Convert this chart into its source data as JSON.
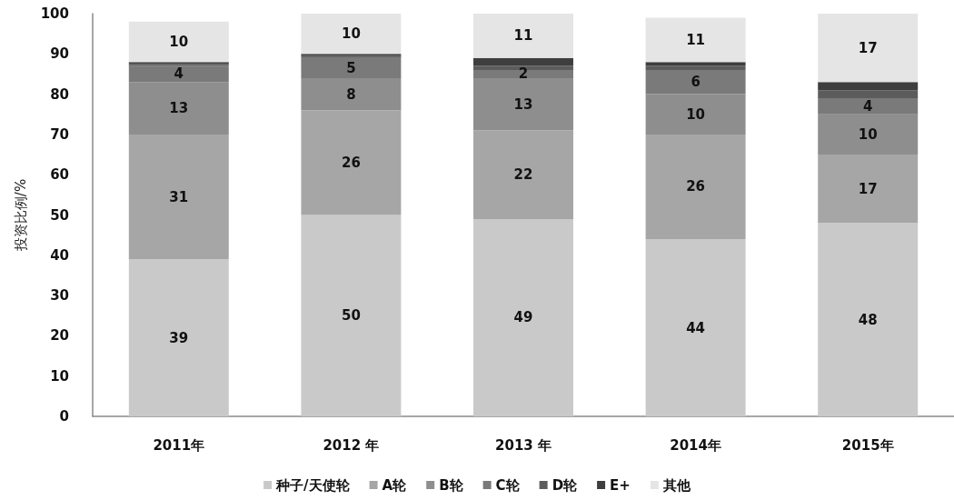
{
  "chart_data": {
    "type": "bar",
    "stacked": true,
    "ylabel": "投资比例/%",
    "categories": [
      "2011年",
      "2012 年",
      "2013 年",
      "2014年",
      "2015年"
    ],
    "series": [
      {
        "name": "种子/天使轮",
        "color": "#c9c9c9",
        "values": [
          39,
          50,
          49,
          44,
          48
        ],
        "value_labels": [
          "39",
          "50",
          "49",
          "44",
          "48"
        ]
      },
      {
        "name": "A轮",
        "color": "#a6a6a6",
        "values": [
          31,
          26,
          22,
          26,
          17
        ],
        "value_labels": [
          "31",
          "26",
          "22",
          "26",
          "17"
        ]
      },
      {
        "name": "B轮",
        "color": "#8e8e8e",
        "values": [
          13,
          8,
          13,
          10,
          10
        ],
        "value_labels": [
          "13",
          "8",
          "13",
          "10",
          "10"
        ]
      },
      {
        "name": "C轮",
        "color": "#7a7a7a",
        "values": [
          4,
          5,
          2,
          6,
          4
        ],
        "value_labels": [
          "4",
          "5",
          "2",
          "6",
          "4"
        ]
      },
      {
        "name": "D轮",
        "color": "#5c5c5c",
        "values": [
          0.5,
          0.5,
          1,
          1,
          2
        ]
      },
      {
        "name": "E+",
        "color": "#3e3e3e",
        "values": [
          0.5,
          0.5,
          2,
          1,
          2
        ]
      },
      {
        "name": "其他",
        "color": "#e5e5e5",
        "values": [
          10,
          10,
          11,
          11,
          17
        ],
        "value_labels": [
          "10",
          "10",
          "11",
          "11",
          "17"
        ]
      }
    ],
    "ylim": [
      0,
      100
    ],
    "yticks": [
      0,
      10,
      20,
      30,
      40,
      50,
      60,
      70,
      80,
      90,
      100
    ],
    "legend": "bottom"
  }
}
